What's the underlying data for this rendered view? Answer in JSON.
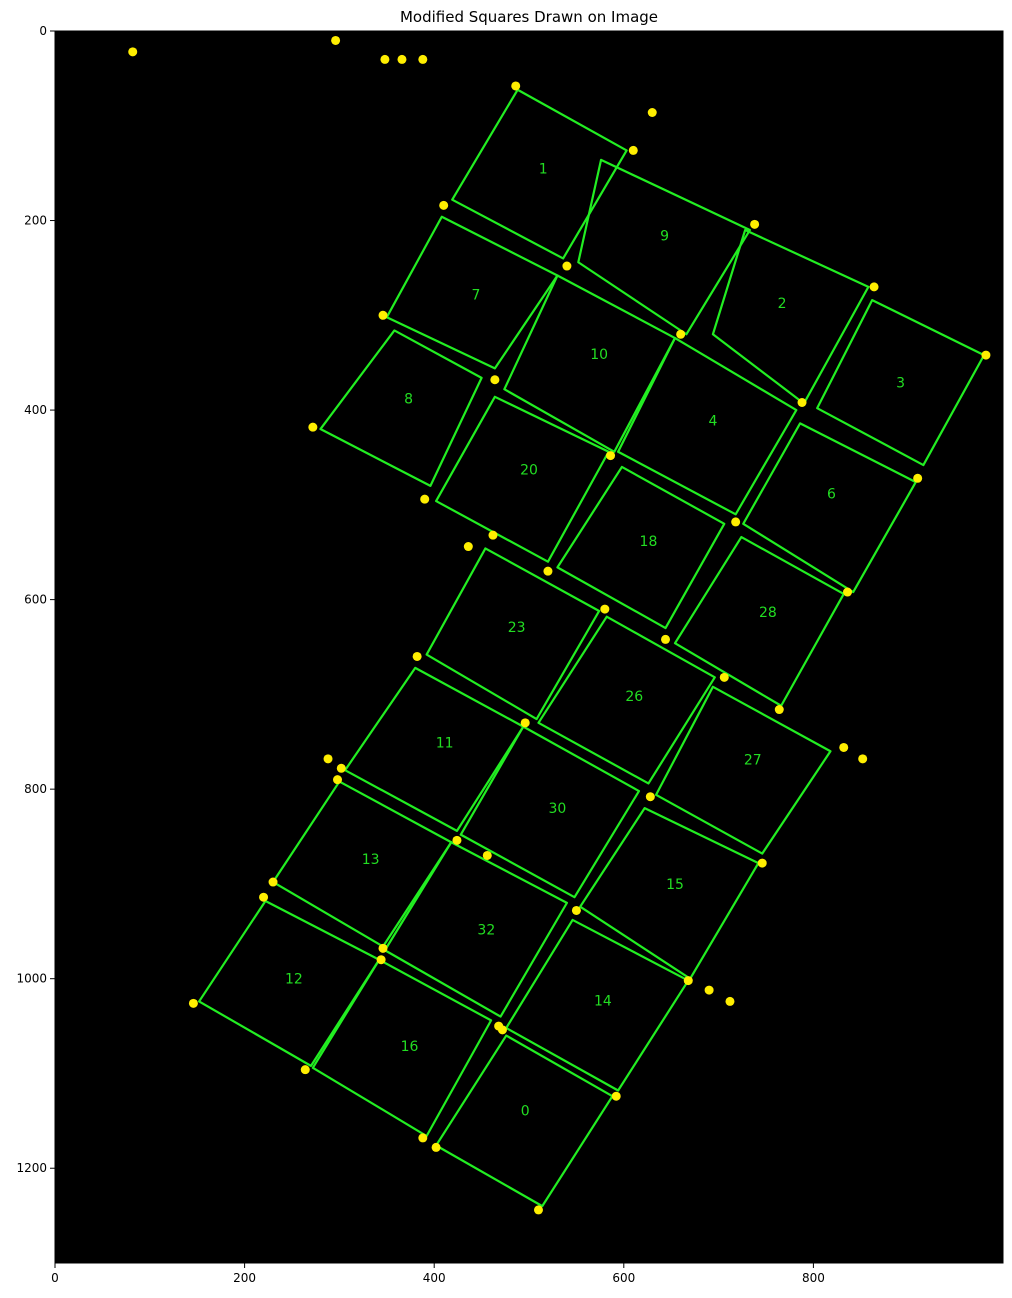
{
  "chart_data": {
    "type": "scatter",
    "title": "Modified Squares Drawn on Image",
    "xlabel": "",
    "ylabel": "",
    "xlim": [
      0,
      1000
    ],
    "ylim": [
      1300,
      0
    ],
    "y_inverted": true,
    "grid": false,
    "xticks": [
      "0",
      "200",
      "400",
      "600",
      "800"
    ],
    "xtick_values": [
      0,
      200,
      400,
      600,
      800
    ],
    "yticks": [
      "0",
      "200",
      "400",
      "600",
      "800",
      "1000",
      "1200"
    ],
    "ytick_values": [
      0,
      200,
      400,
      600,
      800,
      1000,
      1200
    ],
    "background_color": "#000000",
    "square_color": "#22ee22",
    "point_color": "#ffee00",
    "squares": [
      {
        "label": "1",
        "corners": [
          [
            488,
            62
          ],
          [
            603,
            126
          ],
          [
            536,
            240
          ],
          [
            419,
            178
          ]
        ],
        "label_xy": [
          515,
          146
        ]
      },
      {
        "label": "9",
        "corners": [
          [
            576,
            136
          ],
          [
            733,
            210
          ],
          [
            666,
            320
          ],
          [
            552,
            244
          ]
        ],
        "label_xy": [
          643,
          217
        ]
      },
      {
        "label": "2",
        "corners": [
          [
            728,
            210
          ],
          [
            858,
            270
          ],
          [
            790,
            393
          ],
          [
            694,
            320
          ]
        ],
        "label_xy": [
          767,
          288
        ]
      },
      {
        "label": "3",
        "corners": [
          [
            862,
            284
          ],
          [
            980,
            342
          ],
          [
            916,
            458
          ],
          [
            804,
            398
          ]
        ],
        "label_xy": [
          892,
          372
        ]
      },
      {
        "label": "7",
        "corners": [
          [
            408,
            196
          ],
          [
            530,
            258
          ],
          [
            464,
            356
          ],
          [
            350,
            302
          ]
        ],
        "label_xy": [
          444,
          279
        ]
      },
      {
        "label": "10",
        "corners": [
          [
            530,
            258
          ],
          [
            654,
            324
          ],
          [
            590,
            444
          ],
          [
            474,
            378
          ]
        ],
        "label_xy": [
          574,
          342
        ]
      },
      {
        "label": "4",
        "corners": [
          [
            654,
            324
          ],
          [
            782,
            400
          ],
          [
            718,
            510
          ],
          [
            594,
            444
          ]
        ],
        "label_xy": [
          694,
          412
        ]
      },
      {
        "label": "6",
        "corners": [
          [
            786,
            414
          ],
          [
            908,
            476
          ],
          [
            842,
            592
          ],
          [
            726,
            520
          ]
        ],
        "label_xy": [
          819,
          489
        ]
      },
      {
        "label": "8",
        "corners": [
          [
            358,
            316
          ],
          [
            450,
            366
          ],
          [
            396,
            480
          ],
          [
            280,
            420
          ]
        ],
        "label_xy": [
          373,
          389
        ]
      },
      {
        "label": "20",
        "corners": [
          [
            464,
            386
          ],
          [
            584,
            444
          ],
          [
            520,
            560
          ],
          [
            402,
            496
          ]
        ],
        "label_xy": [
          500,
          464
        ]
      },
      {
        "label": "18",
        "corners": [
          [
            598,
            460
          ],
          [
            706,
            520
          ],
          [
            644,
            630
          ],
          [
            530,
            566
          ]
        ],
        "label_xy": [
          626,
          539
        ]
      },
      {
        "label": "28",
        "corners": [
          [
            724,
            534
          ],
          [
            832,
            594
          ],
          [
            766,
            712
          ],
          [
            654,
            646
          ]
        ],
        "label_xy": [
          752,
          614
        ]
      },
      {
        "label": "23",
        "corners": [
          [
            454,
            546
          ],
          [
            574,
            612
          ],
          [
            508,
            726
          ],
          [
            392,
            658
          ]
        ],
        "label_xy": [
          487,
          630
        ]
      },
      {
        "label": "26",
        "corners": [
          [
            582,
            618
          ],
          [
            696,
            682
          ],
          [
            626,
            794
          ],
          [
            510,
            730
          ]
        ],
        "label_xy": [
          611,
          703
        ]
      },
      {
        "label": "11",
        "corners": [
          [
            380,
            672
          ],
          [
            494,
            734
          ],
          [
            424,
            844
          ],
          [
            306,
            780
          ]
        ],
        "label_xy": [
          411,
          752
        ]
      },
      {
        "label": "27",
        "corners": [
          [
            694,
            692
          ],
          [
            818,
            760
          ],
          [
            746,
            868
          ],
          [
            634,
            806
          ]
        ],
        "label_xy": [
          736,
          770
        ]
      },
      {
        "label": "30",
        "corners": [
          [
            494,
            734
          ],
          [
            616,
            802
          ],
          [
            548,
            914
          ],
          [
            428,
            848
          ]
        ],
        "label_xy": [
          530,
          821
        ]
      },
      {
        "label": "13",
        "corners": [
          [
            300,
            792
          ],
          [
            418,
            856
          ],
          [
            346,
            966
          ],
          [
            230,
            898
          ]
        ],
        "label_xy": [
          333,
          875
        ]
      },
      {
        "label": "15",
        "corners": [
          [
            622,
            820
          ],
          [
            742,
            878
          ],
          [
            670,
            1000
          ],
          [
            554,
            924
          ]
        ],
        "label_xy": [
          654,
          901
        ]
      },
      {
        "label": "32",
        "corners": [
          [
            418,
            856
          ],
          [
            540,
            920
          ],
          [
            470,
            1040
          ],
          [
            348,
            970
          ]
        ],
        "label_xy": [
          455,
          949
        ]
      },
      {
        "label": "12",
        "corners": [
          [
            222,
            918
          ],
          [
            342,
            980
          ],
          [
            270,
            1092
          ],
          [
            152,
            1024
          ]
        ],
        "label_xy": [
          252,
          1001
        ]
      },
      {
        "label": "14",
        "corners": [
          [
            546,
            938
          ],
          [
            668,
            1002
          ],
          [
            594,
            1118
          ],
          [
            476,
            1052
          ]
        ],
        "label_xy": [
          578,
          1024
        ]
      },
      {
        "label": "16",
        "corners": [
          [
            342,
            980
          ],
          [
            460,
            1044
          ],
          [
            392,
            1166
          ],
          [
            272,
            1094
          ]
        ],
        "label_xy": [
          374,
          1072
        ]
      },
      {
        "label": "0",
        "corners": [
          [
            476,
            1060
          ],
          [
            588,
            1124
          ],
          [
            514,
            1240
          ],
          [
            402,
            1176
          ]
        ],
        "label_xy": [
          496,
          1140
        ]
      }
    ],
    "points": [
      [
        82,
        22
      ],
      [
        296,
        10
      ],
      [
        348,
        30
      ],
      [
        366,
        30
      ],
      [
        388,
        30
      ],
      [
        486,
        58
      ],
      [
        630,
        86
      ],
      [
        610,
        126
      ],
      [
        410,
        184
      ],
      [
        738,
        204
      ],
      [
        540,
        248
      ],
      [
        864,
        270
      ],
      [
        346,
        300
      ],
      [
        660,
        320
      ],
      [
        982,
        342
      ],
      [
        464,
        368
      ],
      [
        788,
        392
      ],
      [
        272,
        418
      ],
      [
        586,
        448
      ],
      [
        910,
        472
      ],
      [
        390,
        494
      ],
      [
        718,
        518
      ],
      [
        436,
        544
      ],
      [
        462,
        532
      ],
      [
        520,
        570
      ],
      [
        836,
        592
      ],
      [
        580,
        610
      ],
      [
        644,
        642
      ],
      [
        382,
        660
      ],
      [
        706,
        682
      ],
      [
        764,
        716
      ],
      [
        496,
        730
      ],
      [
        832,
        756
      ],
      [
        852,
        768
      ],
      [
        288,
        768
      ],
      [
        302,
        778
      ],
      [
        298,
        790
      ],
      [
        628,
        808
      ],
      [
        424,
        854
      ],
      [
        456,
        870
      ],
      [
        746,
        878
      ],
      [
        230,
        898
      ],
      [
        220,
        914
      ],
      [
        550,
        928
      ],
      [
        346,
        968
      ],
      [
        344,
        980
      ],
      [
        668,
        1002
      ],
      [
        690,
        1012
      ],
      [
        712,
        1024
      ],
      [
        146,
        1026
      ],
      [
        468,
        1050
      ],
      [
        472,
        1054
      ],
      [
        592,
        1124
      ],
      [
        264,
        1096
      ],
      [
        388,
        1168
      ],
      [
        402,
        1178
      ],
      [
        510,
        1244
      ]
    ]
  }
}
